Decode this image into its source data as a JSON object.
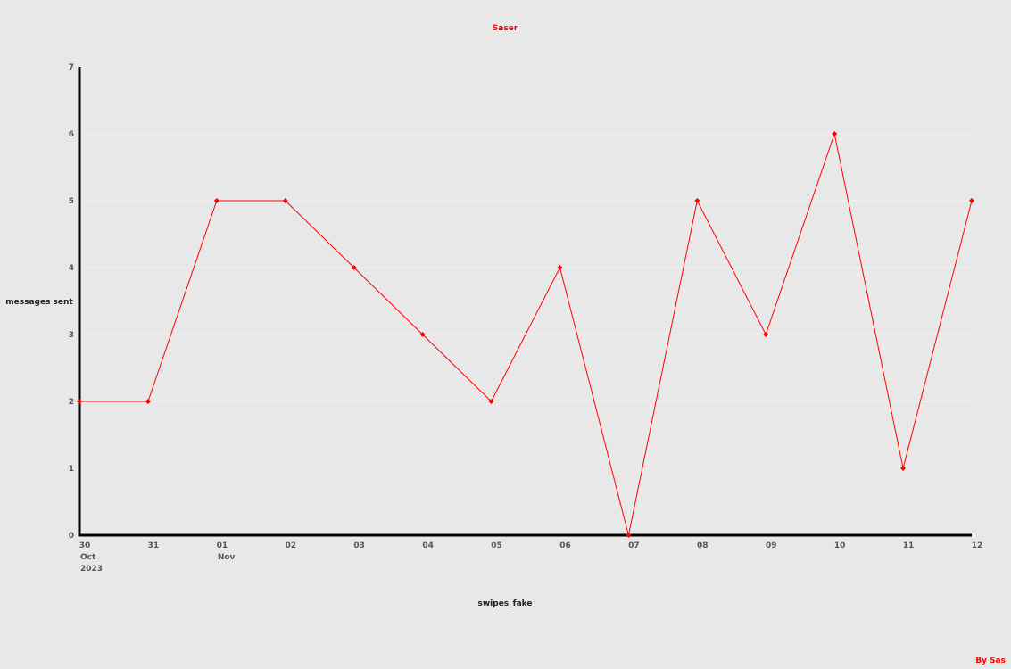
{
  "chart_data": {
    "type": "line",
    "title": "Saser",
    "xlabel": "swipes_fake",
    "ylabel": "messages sent",
    "credit": "By Sas",
    "x": [
      "2023-10-30",
      "2023-10-31",
      "2023-11-01",
      "2023-11-02",
      "2023-11-03",
      "2023-11-04",
      "2023-11-05",
      "2023-11-06",
      "2023-11-07",
      "2023-11-08",
      "2023-11-09",
      "2023-11-10",
      "2023-11-11",
      "2023-11-12"
    ],
    "x_tick_labels": [
      {
        "day": "30",
        "month": "Oct",
        "year": "2023"
      },
      {
        "day": "31"
      },
      {
        "day": "01",
        "month": "Nov"
      },
      {
        "day": "02"
      },
      {
        "day": "03"
      },
      {
        "day": "04"
      },
      {
        "day": "05"
      },
      {
        "day": "06"
      },
      {
        "day": "07"
      },
      {
        "day": "08"
      },
      {
        "day": "09"
      },
      {
        "day": "10"
      },
      {
        "day": "11"
      },
      {
        "day": "12"
      }
    ],
    "series": [
      {
        "values": [
          2,
          2,
          5,
          5,
          4,
          3,
          2,
          4,
          0,
          5,
          3,
          6,
          1,
          5
        ]
      }
    ],
    "y_ticks": [
      "0",
      "1",
      "2",
      "3",
      "4",
      "5",
      "6",
      "7"
    ],
    "ylim": [
      0,
      7
    ],
    "grid": true,
    "colors": {
      "line": "#ff0000",
      "marker": "#ff0000",
      "title": "#ff0000",
      "credit": "#ff0000",
      "axis": "#000000",
      "grid": "#f0f0f0",
      "background": "#e8e8e8"
    }
  }
}
